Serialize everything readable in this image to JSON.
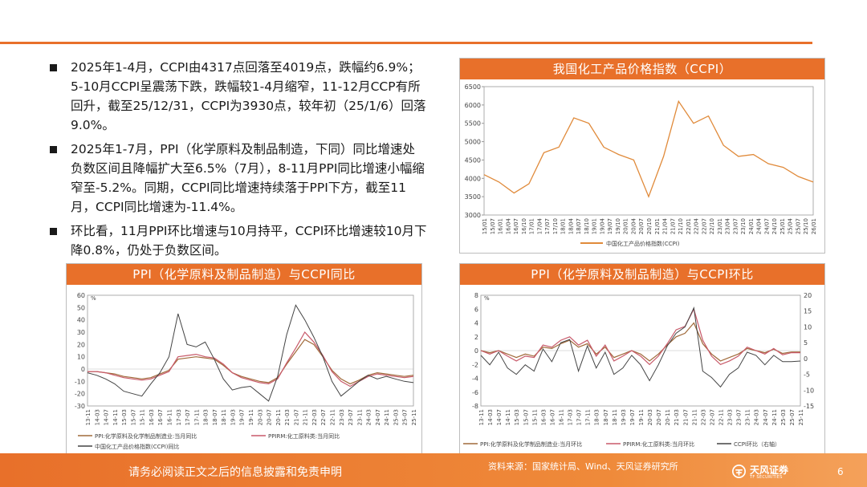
{
  "bullets": [
    "2025年1-4月，CCPI由4317点回落至4019点，跌幅约6.9%；5-10月CCPI呈震荡下跌，跌幅较1-4月缩窄，11-12月CCP有所回升，截至25/12/31，CCPI为3930点，较年初（25/1/6）回落9.0%。",
    "2025年1-7月，PPI（化学原料及制品制造，下同）同比增速处负数区间且降幅扩大至6.5%（7月），8-11月PPI同比增速小幅缩窄至-5.2%。同期，CCPI同比增速持续落于PPI下方，截至11月，CCPI同比增速为-11.4%。",
    "环比看，11月PPI环比增速与10月持平，CCPI环比增速较10月下降0.8%，仍处于负数区间。"
  ],
  "footer": {
    "disclaimer": "请务必阅读正文之后的信息披露和免责申明",
    "source": "资料来源：国家统计局、Wind、天风证券研究所",
    "logo_text": "天风证券",
    "logo_sub": "TF SECURITIES",
    "page": "6"
  },
  "colors": {
    "accent": "#e8702a",
    "ppi": "#a06a3a",
    "ppirm": "#c85a6a",
    "ccpi": "#444444"
  },
  "chart_data": [
    {
      "type": "line",
      "title": "我国化工产品价格指数（CCPI）",
      "ylim": [
        3000,
        6500
      ],
      "yticks": [
        3000,
        3500,
        4000,
        4500,
        5000,
        5500,
        6000,
        6500
      ],
      "xticks": [
        "15/01",
        "15/07",
        "16/01",
        "16/07",
        "17/01",
        "17/07",
        "18/01",
        "18/07",
        "19/01",
        "19/07",
        "20/01",
        "20/07",
        "21/01",
        "21/07",
        "22/01",
        "22/07",
        "23/01",
        "23/07",
        "24/01",
        "24/07",
        "25/01",
        "25/07",
        "26/01"
      ],
      "xticks_shown": [
        "15/01",
        "15/07",
        "16/01",
        "16/04",
        "16/07",
        "16/10",
        "17/01",
        "17/04",
        "17/07",
        "17/10",
        "18/01",
        "18/04",
        "18/07",
        "18/10",
        "19/01",
        "19/04",
        "19/07",
        "19/10",
        "20/01",
        "20/04",
        "20/07",
        "20/10",
        "21/01",
        "21/04",
        "21/07",
        "21/10",
        "22/01",
        "22/04",
        "22/07",
        "22/10",
        "23/01",
        "23/04",
        "23/07",
        "23/10",
        "24/01",
        "24/04",
        "24/07",
        "24/10",
        "25/01",
        "25/04",
        "25/07",
        "25/10",
        "26/01"
      ],
      "series": [
        {
          "name": "中国化工产品价格指数(CCPI)",
          "x": [
            "15/01",
            "15/07",
            "16/01",
            "16/07",
            "17/01",
            "17/07",
            "18/01",
            "18/07",
            "19/01",
            "19/07",
            "20/01",
            "20/07",
            "21/01",
            "21/07",
            "22/01",
            "22/07",
            "23/01",
            "23/07",
            "24/01",
            "24/07",
            "25/01",
            "25/07",
            "26/01"
          ],
          "values": [
            4100,
            3900,
            3600,
            3850,
            4700,
            4850,
            5650,
            5500,
            4850,
            4650,
            4500,
            3500,
            4600,
            6100,
            5500,
            5700,
            4900,
            4600,
            4650,
            4400,
            4300,
            4050,
            3900
          ]
        }
      ]
    },
    {
      "type": "line",
      "title": "PPI（化学原料及制品制造）与CCPI同比",
      "ylabel": "%",
      "ylim": [
        -30,
        60
      ],
      "yticks": [
        -30,
        -20,
        -10,
        0,
        10,
        20,
        30,
        40,
        50,
        60
      ],
      "xticks": [
        "13-11",
        "14-03",
        "14-07",
        "14-11",
        "15-03",
        "15-07",
        "15-11",
        "16-03",
        "16-07",
        "16-11",
        "17-03",
        "17-07",
        "17-11",
        "18-03",
        "18-07",
        "18-11",
        "19-03",
        "19-07",
        "19-11",
        "20-03",
        "20-07",
        "20-11",
        "21-03",
        "21-07",
        "21-11",
        "22-03",
        "22-07",
        "22-11",
        "23-03",
        "23-07",
        "23-11",
        "24-03",
        "24-07",
        "24-11",
        "25-03",
        "25-07",
        "25-11"
      ],
      "series": [
        {
          "name": "PPI:化学原料及化学制品制造业:当月同比",
          "values": [
            -2,
            -2,
            -3,
            -4,
            -6,
            -7,
            -8,
            -7,
            -4,
            -1,
            8,
            9,
            10,
            9,
            8,
            3,
            -3,
            -6,
            -8,
            -10,
            -11,
            -7,
            4,
            14,
            24,
            20,
            10,
            -1,
            -8,
            -12,
            -9,
            -5,
            -3,
            -4,
            -5,
            -6,
            -5
          ]
        },
        {
          "name": "PPIRM:化工原料类:当月同比",
          "values": [
            -2,
            -2,
            -3,
            -5,
            -7,
            -8,
            -9,
            -8,
            -5,
            -2,
            10,
            11,
            12,
            10,
            9,
            4,
            -3,
            -7,
            -9,
            -11,
            -12,
            -8,
            5,
            17,
            30,
            22,
            11,
            -2,
            -10,
            -14,
            -10,
            -6,
            -4,
            -5,
            -6,
            -7,
            -6
          ]
        },
        {
          "name": "中国化工产品价格指数(CCPI)同比",
          "values": [
            -3,
            -5,
            -8,
            -12,
            -18,
            -20,
            -22,
            -12,
            -3,
            10,
            45,
            20,
            18,
            22,
            8,
            -8,
            -17,
            -15,
            -14,
            -20,
            -26,
            -6,
            28,
            52,
            40,
            26,
            10,
            -10,
            -22,
            -16,
            -10,
            -5,
            -8,
            -6,
            -8,
            -10,
            -11
          ]
        }
      ]
    },
    {
      "type": "line",
      "title": "PPI（化学原料及制品制造）与CCPI环比",
      "ylabel": "%",
      "ylim": [
        -8,
        8
      ],
      "yticks": [
        -8,
        -6,
        -4,
        -2,
        0,
        2,
        4,
        6,
        8
      ],
      "y2lim": [
        -15,
        20
      ],
      "y2ticks": [
        -15,
        -10,
        -5,
        0,
        5,
        10,
        15,
        20
      ],
      "xticks": [
        "13-11",
        "14-03",
        "14-07",
        "14-11",
        "15-03",
        "15-07",
        "15-11",
        "16-03",
        "16-07",
        "16-11",
        "17-03",
        "17-07",
        "17-11",
        "18-03",
        "18-07",
        "18-11",
        "19-03",
        "19-07",
        "19-11",
        "20-03",
        "20-07",
        "20-11",
        "21-03",
        "21-07",
        "21-11",
        "22-03",
        "22-07",
        "22-11",
        "23-03",
        "23-07",
        "23-11",
        "24-03",
        "24-07",
        "24-11",
        "25-03",
        "25-07",
        "25-11"
      ],
      "series": [
        {
          "name": "PPI:化学原料及化学制品制造业:当月环比",
          "values": [
            0,
            -0.3,
            0,
            -0.5,
            -1,
            -0.5,
            -0.8,
            0.5,
            0.3,
            1,
            1.5,
            0.5,
            1,
            -0.5,
            0.5,
            -1,
            -0.5,
            0,
            -0.5,
            -1.5,
            -0.5,
            0.8,
            2,
            2.5,
            4,
            1,
            -0.5,
            -1.5,
            -1,
            -0.5,
            0.3,
            0,
            -0.3,
            0.2,
            -0.4,
            -0.2,
            -0.2
          ]
        },
        {
          "name": "PPIRM:化工原料类:当月环比",
          "values": [
            0,
            -0.5,
            0,
            -0.8,
            -1.5,
            -0.8,
            -1,
            0.8,
            0.5,
            1.5,
            2,
            0.8,
            1.5,
            -0.8,
            0.8,
            -1.5,
            -0.8,
            0,
            -0.8,
            -2,
            -0.8,
            1,
            3,
            3.5,
            6,
            1.5,
            -0.8,
            -2,
            -1.5,
            -0.8,
            0.5,
            0,
            -0.5,
            0.3,
            -0.6,
            -0.3,
            -0.3
          ]
        },
        {
          "name": "CCPI环比（右轴）",
          "axis": "right",
          "values": [
            1,
            -2,
            2,
            -3,
            -5,
            -2,
            -4,
            3,
            -1,
            5,
            6,
            -4,
            4,
            -3,
            2,
            -5,
            -3,
            1,
            -2,
            -7,
            -2,
            4,
            8,
            10,
            16,
            -4,
            -6,
            -9,
            -5,
            -3,
            2,
            1,
            -2,
            1,
            -1,
            -1,
            -0.8
          ]
        }
      ]
    }
  ]
}
